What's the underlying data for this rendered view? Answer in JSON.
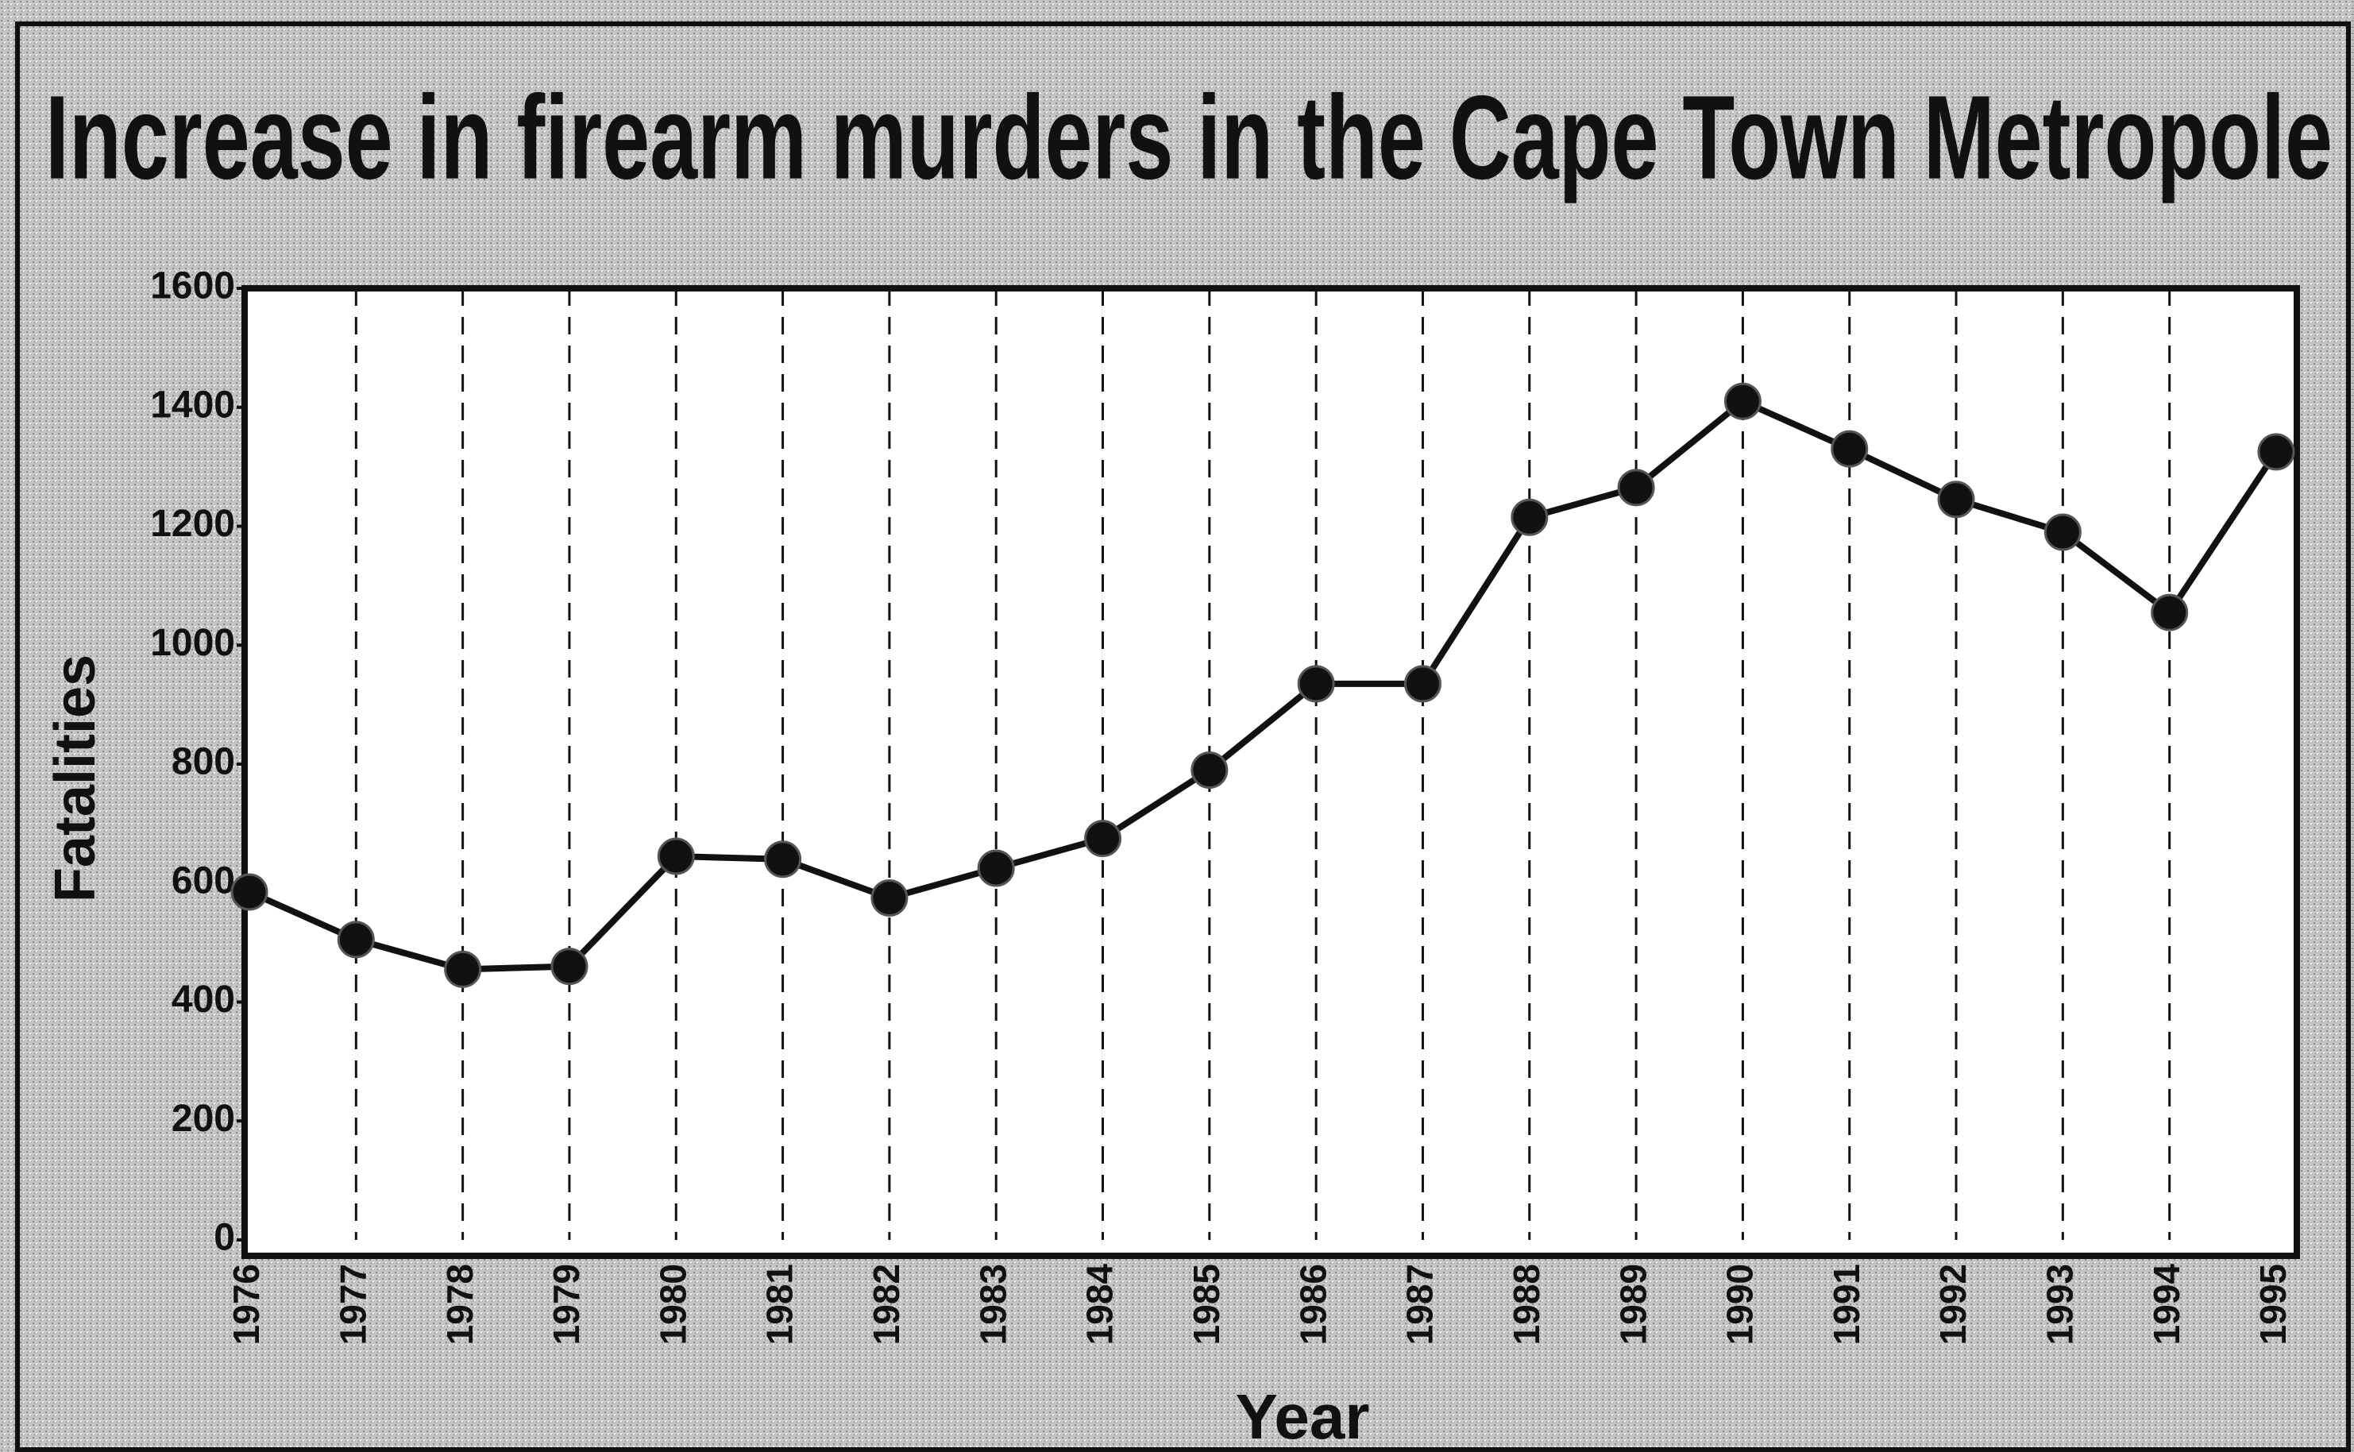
{
  "chart_data": {
    "type": "line",
    "title": "Increase in firearm murders in the Cape Town Metropole",
    "x_label": "Year",
    "y_label": "Fatalities",
    "categories": [
      "1976",
      "1977",
      "1978",
      "1979",
      "1980",
      "1981",
      "1982",
      "1983",
      "1984",
      "1985",
      "1986",
      "1987",
      "1988",
      "1989",
      "1990",
      "1991",
      "1992",
      "1993",
      "1994",
      "1995"
    ],
    "values": [
      585,
      505,
      455,
      460,
      645,
      640,
      575,
      625,
      675,
      790,
      935,
      935,
      1215,
      1265,
      1410,
      1330,
      1245,
      1190,
      1055,
      1325
    ],
    "color": "#111111",
    "ylim": [
      0,
      1600
    ],
    "yticks": [
      0,
      200,
      400,
      600,
      800,
      1000,
      1200,
      1400,
      1600
    ],
    "grid": true
  }
}
